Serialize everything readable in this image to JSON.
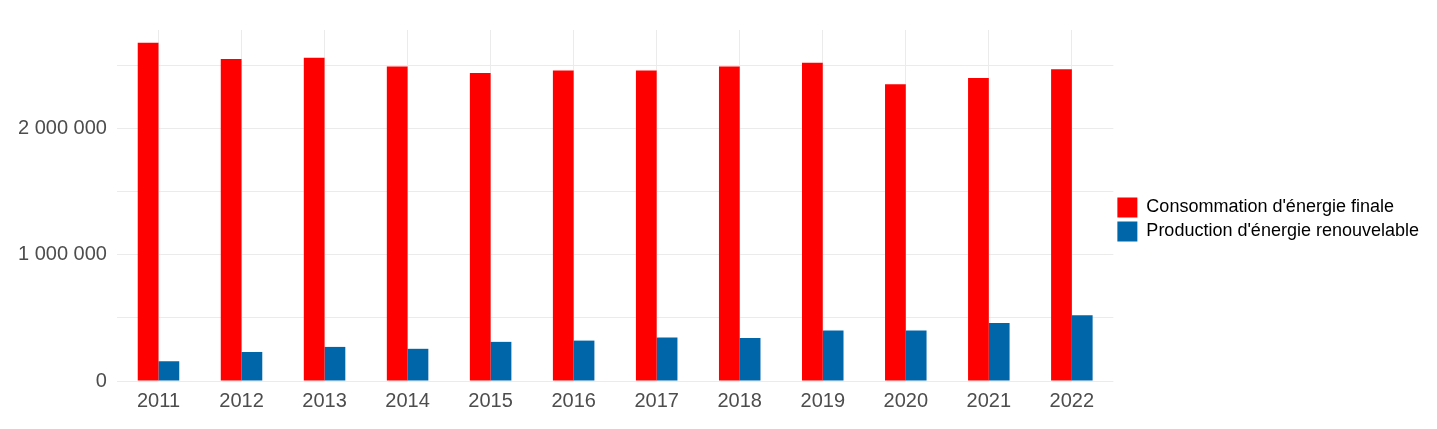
{
  "chart_data": {
    "type": "bar",
    "categories": [
      "2011",
      "2012",
      "2013",
      "2014",
      "2015",
      "2016",
      "2017",
      "2018",
      "2019",
      "2020",
      "2021",
      "2022"
    ],
    "series": [
      {
        "name": "Consommation d'énergie finale",
        "color": "#ff0000",
        "values": [
          2680000,
          2550000,
          2560000,
          2490000,
          2440000,
          2460000,
          2460000,
          2490000,
          2520000,
          2350000,
          2400000,
          2470000
        ]
      },
      {
        "name": "Production d'énergie renouvelable",
        "color": "#0066aa",
        "values": [
          157000,
          230000,
          270000,
          255000,
          310000,
          320000,
          345000,
          340000,
          400000,
          400000,
          460000,
          520000
        ]
      }
    ],
    "ylim": [
      0,
      2780000
    ],
    "yticks": [
      {
        "value": 0,
        "label": "0"
      },
      {
        "value": 500000,
        "label": null
      },
      {
        "value": 1000000,
        "label": "1 000 000"
      },
      {
        "value": 1500000,
        "label": null
      },
      {
        "value": 2000000,
        "label": "2 000 000"
      },
      {
        "value": 2500000,
        "label": null
      }
    ],
    "grid": true,
    "legend": "right"
  }
}
